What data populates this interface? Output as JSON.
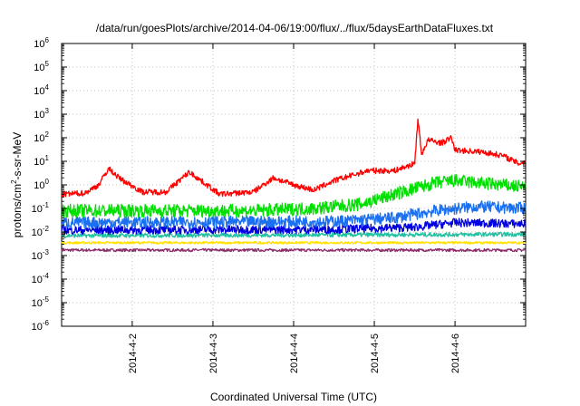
{
  "chart_data": {
    "type": "line",
    "title": "/data/run/goesPlots/archive/2014-04-06/19:00/flux/../flux/5daysEarthDataFluxes.txt",
    "xlabel": "Coordinated Universal Time (UTC)",
    "ylabel": "protons/cm2-s-sr-MeV",
    "ylabel_parts": {
      "pre": "protons/cm",
      "sup": "2",
      "post": "-s-sr-MeV"
    },
    "xlim": [
      "2014-04-01T03:00",
      "2014-04-06T21:00"
    ],
    "ylim": [
      1e-06,
      1000000.0
    ],
    "yscale": "log",
    "grid": true,
    "legend": "none",
    "x_ticks": [
      {
        "value": "2014-04-02T00:00",
        "label": "2014-4-2"
      },
      {
        "value": "2014-04-03T00:00",
        "label": "2014-4-3"
      },
      {
        "value": "2014-04-04T00:00",
        "label": "2014-4-4"
      },
      {
        "value": "2014-04-05T00:00",
        "label": "2014-4-5"
      },
      {
        "value": "2014-04-06T00:00",
        "label": "2014-4-6"
      }
    ],
    "y_ticks": [
      {
        "value": 1e-06,
        "base": "10",
        "exp": "-6"
      },
      {
        "value": 1e-05,
        "base": "10",
        "exp": "-5"
      },
      {
        "value": 0.0001,
        "base": "10",
        "exp": "-4"
      },
      {
        "value": 0.001,
        "base": "10",
        "exp": "-3"
      },
      {
        "value": 0.01,
        "base": "10",
        "exp": "-2"
      },
      {
        "value": 0.1,
        "base": "10",
        "exp": "-1"
      },
      {
        "value": 1.0,
        "base": "10",
        "exp": "0"
      },
      {
        "value": 10.0,
        "base": "10",
        "exp": "1"
      },
      {
        "value": 100.0,
        "base": "10",
        "exp": "2"
      },
      {
        "value": 1000.0,
        "base": "10",
        "exp": "3"
      },
      {
        "value": 10000.0,
        "base": "10",
        "exp": "4"
      },
      {
        "value": 100000.0,
        "base": "10",
        "exp": "5"
      },
      {
        "value": 1000000.0,
        "base": "10",
        "exp": "6"
      }
    ],
    "series": [
      {
        "color": "#8b2d6b",
        "noise": 0.06,
        "points": [
          [
            "2014-04-01T03:00",
            0.0017
          ],
          [
            "2014-04-06T21:00",
            0.0017
          ]
        ]
      },
      {
        "color": "#ffe000",
        "noise": 0.05,
        "points": [
          [
            "2014-04-01T03:00",
            0.0035
          ],
          [
            "2014-04-06T21:00",
            0.0035
          ]
        ]
      },
      {
        "color": "#20c0a0",
        "noise": 0.09,
        "points": [
          [
            "2014-04-01T03:00",
            0.007
          ],
          [
            "2014-04-04T12:00",
            0.0075
          ],
          [
            "2014-04-06T21:00",
            0.008
          ]
        ]
      },
      {
        "color": "#0000e0",
        "noise": 0.18,
        "points": [
          [
            "2014-04-01T03:00",
            0.012
          ],
          [
            "2014-04-04T12:00",
            0.013
          ],
          [
            "2014-04-05T12:00",
            0.016
          ],
          [
            "2014-04-06T00:00",
            0.025
          ],
          [
            "2014-04-06T21:00",
            0.022
          ]
        ]
      },
      {
        "color": "#1a70f0",
        "noise": 0.25,
        "points": [
          [
            "2014-04-01T03:00",
            0.025
          ],
          [
            "2014-04-04T12:00",
            0.028
          ],
          [
            "2014-04-05T06:00",
            0.04
          ],
          [
            "2014-04-05T18:00",
            0.08
          ],
          [
            "2014-04-06T06:00",
            0.12
          ],
          [
            "2014-04-06T21:00",
            0.1
          ]
        ]
      },
      {
        "color": "#00e000",
        "noise": 0.28,
        "points": [
          [
            "2014-04-01T03:00",
            0.08
          ],
          [
            "2014-04-03T12:00",
            0.08
          ],
          [
            "2014-04-04T06:00",
            0.1
          ],
          [
            "2014-04-04T20:00",
            0.15
          ],
          [
            "2014-04-05T06:00",
            0.4
          ],
          [
            "2014-04-05T18:00",
            1.2
          ],
          [
            "2014-04-06T00:00",
            1.5
          ],
          [
            "2014-04-06T21:00",
            0.8
          ]
        ]
      },
      {
        "color": "#ff0000",
        "noise": 0.12,
        "points": [
          [
            "2014-04-01T03:00",
            0.4
          ],
          [
            "2014-04-01T10:00",
            0.45
          ],
          [
            "2014-04-01T14:00",
            1.0
          ],
          [
            "2014-04-01T17:00",
            5.0
          ],
          [
            "2014-04-01T20:00",
            2.0
          ],
          [
            "2014-04-02T03:00",
            0.5
          ],
          [
            "2014-04-02T10:00",
            0.5
          ],
          [
            "2014-04-02T17:00",
            3.5
          ],
          [
            "2014-04-03T02:00",
            0.4
          ],
          [
            "2014-04-03T12:00",
            0.5
          ],
          [
            "2014-04-03T18:00",
            2.0
          ],
          [
            "2014-04-04T00:00",
            1.0
          ],
          [
            "2014-04-04T06:00",
            0.6
          ],
          [
            "2014-04-04T12:00",
            1.5
          ],
          [
            "2014-04-04T22:00",
            4.0
          ],
          [
            "2014-04-05T06:00",
            4.0
          ],
          [
            "2014-04-05T12:00",
            8.0
          ],
          [
            "2014-04-05T13:00",
            700
          ],
          [
            "2014-04-05T14:00",
            20
          ],
          [
            "2014-04-05T16:00",
            80
          ],
          [
            "2014-04-05T20:00",
            60
          ],
          [
            "2014-04-05T23:00",
            100
          ],
          [
            "2014-04-06T00:00",
            30
          ],
          [
            "2014-04-06T08:00",
            25
          ],
          [
            "2014-04-06T14:00",
            18
          ],
          [
            "2014-04-06T19:00",
            8
          ],
          [
            "2014-04-06T21:00",
            10
          ]
        ]
      }
    ]
  }
}
